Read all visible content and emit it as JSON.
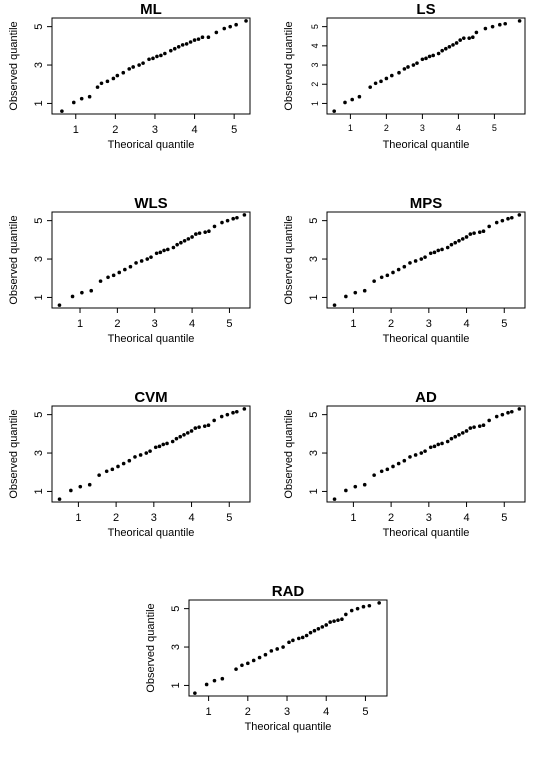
{
  "chart_data": [
    {
      "type": "scatter",
      "title": "ML",
      "xlabel": "Theorical quantile",
      "ylabel": "Observed quantile",
      "x_ticks": [
        "1",
        "2",
        "3",
        "4",
        "5"
      ],
      "y_ticks": [
        "1",
        "3",
        "5"
      ],
      "xlim": [
        0.4,
        5.4
      ],
      "ylim": [
        0.45,
        5.45
      ],
      "grid": false,
      "x": [
        0.65,
        0.95,
        1.15,
        1.35,
        1.55,
        1.65,
        1.8,
        1.95,
        2.05,
        2.2,
        2.35,
        2.45,
        2.6,
        2.7,
        2.85,
        2.95,
        3.05,
        3.15,
        3.25,
        3.4,
        3.5,
        3.6,
        3.7,
        3.8,
        3.9,
        4.0,
        4.1,
        4.2,
        4.35,
        4.55,
        4.75,
        4.9,
        5.05,
        5.3
      ],
      "y": [
        0.6,
        1.05,
        1.25,
        1.35,
        1.85,
        2.05,
        2.15,
        2.3,
        2.45,
        2.6,
        2.8,
        2.9,
        3.0,
        3.1,
        3.3,
        3.35,
        3.45,
        3.5,
        3.6,
        3.75,
        3.85,
        3.95,
        4.05,
        4.1,
        4.2,
        4.3,
        4.35,
        4.45,
        4.45,
        4.7,
        4.9,
        5.0,
        5.1,
        5.3
      ]
    },
    {
      "type": "scatter",
      "title": "LS",
      "xlabel": "Theorical quantile",
      "ylabel": "Observed quantile",
      "x_ticks": [
        "1",
        "2",
        "3",
        "4",
        "5"
      ],
      "y_ticks": [
        "1",
        "2",
        "3",
        "4",
        "5"
      ],
      "xlim": [
        0.35,
        5.85
      ],
      "ylim": [
        0.45,
        5.45
      ],
      "grid": false,
      "x": [
        0.55,
        0.85,
        1.05,
        1.25,
        1.55,
        1.7,
        1.85,
        2.0,
        2.15,
        2.35,
        2.5,
        2.6,
        2.75,
        2.85,
        3.0,
        3.1,
        3.2,
        3.3,
        3.45,
        3.55,
        3.65,
        3.75,
        3.85,
        3.95,
        4.05,
        4.15,
        4.3,
        4.4,
        4.5,
        4.75,
        4.95,
        5.15,
        5.3,
        5.7
      ],
      "y": [
        0.6,
        1.05,
        1.2,
        1.35,
        1.85,
        2.05,
        2.15,
        2.3,
        2.45,
        2.6,
        2.8,
        2.9,
        3.0,
        3.1,
        3.3,
        3.35,
        3.45,
        3.5,
        3.6,
        3.75,
        3.85,
        3.95,
        4.05,
        4.15,
        4.3,
        4.4,
        4.4,
        4.45,
        4.7,
        4.9,
        5.0,
        5.1,
        5.15,
        5.3
      ]
    },
    {
      "type": "scatter",
      "title": "WLS",
      "xlabel": "Theorical quantile",
      "ylabel": "Observed quantile",
      "x_ticks": [
        "1",
        "2",
        "3",
        "4",
        "5"
      ],
      "y_ticks": [
        "1",
        "3",
        "5"
      ],
      "xlim": [
        0.25,
        5.55
      ],
      "ylim": [
        0.45,
        5.45
      ],
      "grid": false,
      "x": [
        0.45,
        0.8,
        1.05,
        1.3,
        1.55,
        1.75,
        1.9,
        2.05,
        2.2,
        2.35,
        2.5,
        2.65,
        2.8,
        2.9,
        3.05,
        3.15,
        3.25,
        3.35,
        3.5,
        3.6,
        3.7,
        3.8,
        3.9,
        4.0,
        4.1,
        4.2,
        4.35,
        4.45,
        4.6,
        4.8,
        4.95,
        5.1,
        5.2,
        5.4
      ],
      "y": [
        0.6,
        1.05,
        1.25,
        1.35,
        1.85,
        2.05,
        2.15,
        2.3,
        2.45,
        2.6,
        2.8,
        2.9,
        3.0,
        3.1,
        3.3,
        3.35,
        3.45,
        3.5,
        3.6,
        3.75,
        3.85,
        3.95,
        4.05,
        4.15,
        4.3,
        4.35,
        4.4,
        4.45,
        4.7,
        4.9,
        5.0,
        5.1,
        5.15,
        5.3
      ]
    },
    {
      "type": "scatter",
      "title": "MPS",
      "xlabel": "Theorical quantile",
      "ylabel": "Observed quantile",
      "x_ticks": [
        "1",
        "2",
        "3",
        "4",
        "5"
      ],
      "y_ticks": [
        "1",
        "3",
        "5"
      ],
      "xlim": [
        0.3,
        5.55
      ],
      "ylim": [
        0.45,
        5.45
      ],
      "grid": false,
      "x": [
        0.5,
        0.8,
        1.05,
        1.3,
        1.55,
        1.75,
        1.9,
        2.05,
        2.2,
        2.35,
        2.5,
        2.65,
        2.8,
        2.9,
        3.05,
        3.15,
        3.25,
        3.35,
        3.5,
        3.6,
        3.7,
        3.8,
        3.9,
        4.0,
        4.1,
        4.2,
        4.35,
        4.45,
        4.6,
        4.8,
        4.95,
        5.1,
        5.2,
        5.4
      ],
      "y": [
        0.6,
        1.05,
        1.25,
        1.35,
        1.85,
        2.05,
        2.15,
        2.3,
        2.45,
        2.6,
        2.8,
        2.9,
        3.0,
        3.1,
        3.3,
        3.35,
        3.45,
        3.5,
        3.6,
        3.75,
        3.85,
        3.95,
        4.05,
        4.15,
        4.3,
        4.35,
        4.4,
        4.45,
        4.7,
        4.9,
        5.0,
        5.1,
        5.15,
        5.3
      ]
    },
    {
      "type": "scatter",
      "title": "CVM",
      "xlabel": "Theorical quantile",
      "ylabel": "Observed quantile",
      "x_ticks": [
        "1",
        "2",
        "3",
        "4",
        "5"
      ],
      "y_ticks": [
        "1",
        "3",
        "5"
      ],
      "xlim": [
        0.3,
        5.55
      ],
      "ylim": [
        0.45,
        5.45
      ],
      "grid": false,
      "x": [
        0.5,
        0.8,
        1.05,
        1.3,
        1.55,
        1.75,
        1.9,
        2.05,
        2.2,
        2.35,
        2.5,
        2.65,
        2.8,
        2.9,
        3.05,
        3.15,
        3.25,
        3.35,
        3.5,
        3.6,
        3.7,
        3.8,
        3.9,
        4.0,
        4.1,
        4.2,
        4.35,
        4.45,
        4.6,
        4.8,
        4.95,
        5.1,
        5.2,
        5.4
      ],
      "y": [
        0.6,
        1.05,
        1.25,
        1.35,
        1.85,
        2.05,
        2.15,
        2.3,
        2.45,
        2.6,
        2.8,
        2.9,
        3.0,
        3.1,
        3.3,
        3.35,
        3.45,
        3.5,
        3.6,
        3.75,
        3.85,
        3.95,
        4.05,
        4.15,
        4.3,
        4.35,
        4.4,
        4.45,
        4.7,
        4.9,
        5.0,
        5.1,
        5.15,
        5.3
      ]
    },
    {
      "type": "scatter",
      "title": "AD",
      "xlabel": "Theorical quantile",
      "ylabel": "Observed quantile",
      "x_ticks": [
        "1",
        "2",
        "3",
        "4",
        "5"
      ],
      "y_ticks": [
        "1",
        "3",
        "5"
      ],
      "xlim": [
        0.3,
        5.55
      ],
      "ylim": [
        0.45,
        5.45
      ],
      "grid": false,
      "x": [
        0.5,
        0.8,
        1.05,
        1.3,
        1.55,
        1.75,
        1.9,
        2.05,
        2.2,
        2.35,
        2.5,
        2.65,
        2.8,
        2.9,
        3.05,
        3.15,
        3.25,
        3.35,
        3.5,
        3.6,
        3.7,
        3.8,
        3.9,
        4.0,
        4.1,
        4.2,
        4.35,
        4.45,
        4.6,
        4.8,
        4.95,
        5.1,
        5.2,
        5.4
      ],
      "y": [
        0.6,
        1.05,
        1.25,
        1.35,
        1.85,
        2.05,
        2.15,
        2.3,
        2.45,
        2.6,
        2.8,
        2.9,
        3.0,
        3.1,
        3.3,
        3.35,
        3.45,
        3.5,
        3.6,
        3.75,
        3.85,
        3.95,
        4.05,
        4.15,
        4.3,
        4.35,
        4.4,
        4.45,
        4.7,
        4.9,
        5.0,
        5.1,
        5.15,
        5.3
      ]
    },
    {
      "type": "scatter",
      "title": "RAD",
      "xlabel": "Theorical quantile",
      "ylabel": "Observed quantile",
      "x_ticks": [
        "1",
        "2",
        "3",
        "4",
        "5"
      ],
      "y_ticks": [
        "1",
        "3",
        "5"
      ],
      "xlim": [
        0.5,
        5.55
      ],
      "ylim": [
        0.45,
        5.45
      ],
      "grid": false,
      "x": [
        0.65,
        0.95,
        1.15,
        1.35,
        1.7,
        1.85,
        2.0,
        2.15,
        2.3,
        2.45,
        2.6,
        2.75,
        2.9,
        3.05,
        3.15,
        3.3,
        3.4,
        3.5,
        3.6,
        3.7,
        3.8,
        3.9,
        4.0,
        4.1,
        4.2,
        4.3,
        4.4,
        4.5,
        4.65,
        4.8,
        4.95,
        5.1,
        5.35
      ],
      "y": [
        0.6,
        1.05,
        1.25,
        1.35,
        1.85,
        2.05,
        2.15,
        2.3,
        2.45,
        2.6,
        2.8,
        2.9,
        3.0,
        3.25,
        3.35,
        3.45,
        3.5,
        3.6,
        3.75,
        3.85,
        3.95,
        4.05,
        4.15,
        4.3,
        4.35,
        4.4,
        4.45,
        4.7,
        4.9,
        5.0,
        5.1,
        5.15,
        5.3
      ]
    }
  ]
}
